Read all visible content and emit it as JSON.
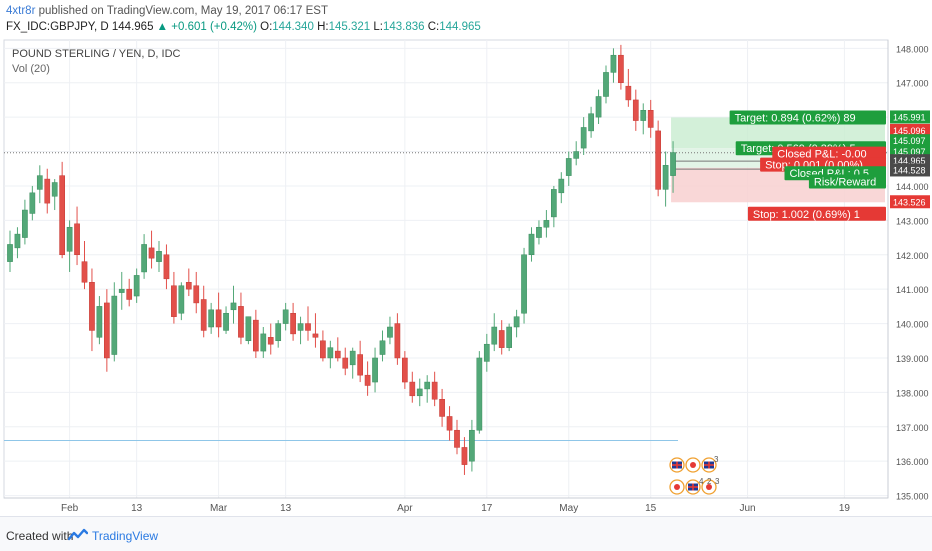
{
  "header": {
    "author": "4xtr8r",
    "published": "published on TradingView.com, May 19, 2017 06:17 EST",
    "symbol": "FX_IDC:GBPJPY, D",
    "price": "144.965",
    "change": "+0.601 (+0.42%)",
    "o_label": "O:",
    "o": "144.340",
    "h_label": "H:",
    "h": "145.321",
    "l_label": "L:",
    "l": "143.836",
    "c_label": "C:",
    "c": "144.965"
  },
  "legend": {
    "title": "POUND STERLING / YEN, D, IDC",
    "vol": "Vol (20)"
  },
  "footer": {
    "created": "Created with",
    "brand": "TradingView"
  },
  "colors": {
    "up": "#53a878",
    "down": "#e2504a",
    "bg": "#ffffff",
    "grid": "#eef0f4"
  },
  "chart_data": {
    "type": "candlestick",
    "y_ticks": [
      "148.000",
      "147.000",
      "146.000",
      "145.000",
      "144.000",
      "143.000",
      "142.000",
      "141.000",
      "140.000",
      "139.000",
      "138.000",
      "137.000",
      "136.000",
      "135.000"
    ],
    "ylim": [
      134.93,
      148.3
    ],
    "x_ticks": [
      {
        "label": "Feb",
        "i": 8
      },
      {
        "label": "13",
        "i": 17
      },
      {
        "label": "Mar",
        "i": 28
      },
      {
        "label": "13",
        "i": 37
      },
      {
        "label": "Apr",
        "i": 53
      },
      {
        "label": "17",
        "i": 64
      },
      {
        "label": "May",
        "i": 75
      },
      {
        "label": "15",
        "i": 86
      },
      {
        "label": "Jun",
        "i": 99
      },
      {
        "label": "19",
        "i": 112
      }
    ],
    "last_price": 144.965,
    "candles": [
      [
        141.8,
        142.7,
        141.5,
        142.3
      ],
      [
        142.2,
        142.8,
        141.9,
        142.6
      ],
      [
        142.5,
        143.6,
        142.3,
        143.3
      ],
      [
        143.2,
        144.0,
        143.0,
        143.8
      ],
      [
        143.9,
        144.6,
        143.5,
        144.3
      ],
      [
        144.2,
        144.5,
        143.2,
        143.5
      ],
      [
        143.7,
        144.2,
        143.3,
        144.1
      ],
      [
        144.3,
        144.7,
        141.9,
        142.0
      ],
      [
        142.1,
        143.0,
        141.5,
        142.8
      ],
      [
        142.9,
        143.4,
        141.7,
        142.0
      ],
      [
        141.8,
        142.4,
        141.0,
        141.2
      ],
      [
        141.2,
        141.6,
        139.2,
        139.8
      ],
      [
        139.6,
        140.8,
        139.4,
        140.5
      ],
      [
        140.6,
        141.0,
        138.6,
        139.0
      ],
      [
        139.1,
        141.2,
        138.9,
        140.8
      ],
      [
        140.9,
        141.5,
        140.4,
        141.0
      ],
      [
        141.0,
        141.3,
        140.5,
        140.7
      ],
      [
        140.8,
        141.6,
        140.6,
        141.4
      ],
      [
        141.5,
        142.6,
        141.3,
        142.3
      ],
      [
        142.2,
        142.7,
        141.6,
        141.9
      ],
      [
        141.8,
        142.4,
        141.5,
        142.1
      ],
      [
        142.0,
        142.3,
        141.0,
        141.3
      ],
      [
        141.1,
        141.5,
        140.0,
        140.2
      ],
      [
        140.3,
        141.2,
        140.1,
        141.1
      ],
      [
        141.2,
        141.6,
        140.8,
        141.0
      ],
      [
        141.1,
        141.5,
        140.3,
        140.6
      ],
      [
        140.7,
        141.1,
        139.6,
        139.8
      ],
      [
        139.9,
        140.6,
        139.7,
        140.4
      ],
      [
        140.4,
        140.9,
        139.6,
        139.9
      ],
      [
        139.8,
        140.5,
        139.7,
        140.3
      ],
      [
        140.4,
        141.1,
        140.0,
        140.6
      ],
      [
        140.5,
        140.9,
        139.4,
        139.6
      ],
      [
        139.5,
        140.2,
        139.4,
        140.2
      ],
      [
        140.1,
        140.4,
        139.0,
        139.2
      ],
      [
        139.2,
        139.9,
        139.0,
        139.7
      ],
      [
        139.6,
        140.0,
        139.1,
        139.4
      ],
      [
        139.5,
        140.1,
        139.3,
        140.0
      ],
      [
        140.0,
        140.6,
        139.8,
        140.4
      ],
      [
        140.3,
        140.6,
        139.5,
        139.7
      ],
      [
        139.8,
        140.2,
        139.4,
        140.0
      ],
      [
        140.0,
        140.5,
        139.5,
        139.8
      ],
      [
        139.7,
        140.3,
        139.3,
        139.6
      ],
      [
        139.5,
        139.8,
        138.9,
        139.0
      ],
      [
        139.0,
        139.5,
        138.7,
        139.3
      ],
      [
        139.2,
        139.6,
        138.9,
        139.0
      ],
      [
        139.0,
        139.3,
        138.5,
        138.7
      ],
      [
        138.8,
        139.3,
        138.4,
        139.2
      ],
      [
        139.1,
        139.5,
        138.3,
        138.5
      ],
      [
        138.5,
        138.9,
        137.9,
        138.2
      ],
      [
        138.3,
        139.3,
        138.0,
        139.0
      ],
      [
        139.1,
        139.8,
        138.9,
        139.5
      ],
      [
        139.6,
        140.2,
        139.4,
        139.9
      ],
      [
        140.0,
        140.3,
        138.8,
        139.0
      ],
      [
        139.0,
        139.2,
        138.1,
        138.3
      ],
      [
        138.3,
        138.6,
        137.7,
        137.9
      ],
      [
        137.9,
        138.4,
        137.6,
        138.1
      ],
      [
        138.1,
        138.5,
        137.7,
        138.3
      ],
      [
        138.3,
        138.6,
        137.6,
        137.8
      ],
      [
        137.8,
        138.1,
        137.0,
        137.3
      ],
      [
        137.3,
        137.6,
        136.6,
        136.9
      ],
      [
        136.9,
        137.2,
        136.2,
        136.4
      ],
      [
        136.4,
        136.7,
        135.6,
        135.9
      ],
      [
        136.0,
        137.2,
        135.7,
        136.9
      ],
      [
        136.9,
        139.2,
        136.8,
        139.0
      ],
      [
        138.9,
        139.7,
        138.6,
        139.4
      ],
      [
        139.4,
        140.3,
        139.2,
        139.9
      ],
      [
        139.8,
        140.1,
        139.1,
        139.3
      ],
      [
        139.3,
        140.0,
        139.2,
        139.9
      ],
      [
        139.9,
        140.4,
        139.6,
        140.2
      ],
      [
        140.3,
        142.2,
        140.0,
        142.0
      ],
      [
        142.0,
        142.8,
        141.8,
        142.6
      ],
      [
        142.5,
        143.0,
        142.3,
        142.8
      ],
      [
        142.8,
        143.3,
        142.5,
        143.0
      ],
      [
        143.1,
        144.0,
        142.8,
        143.9
      ],
      [
        143.8,
        144.4,
        143.5,
        144.2
      ],
      [
        144.3,
        145.0,
        144.0,
        144.8
      ],
      [
        144.8,
        145.3,
        144.6,
        145.0
      ],
      [
        145.1,
        146.0,
        144.9,
        145.7
      ],
      [
        145.6,
        146.3,
        145.4,
        146.1
      ],
      [
        146.0,
        146.8,
        145.8,
        146.6
      ],
      [
        146.6,
        147.5,
        146.4,
        147.3
      ],
      [
        147.3,
        148.0,
        147.0,
        147.8
      ],
      [
        147.8,
        148.1,
        146.8,
        147.0
      ],
      [
        146.9,
        147.4,
        146.3,
        146.5
      ],
      [
        146.5,
        146.8,
        145.6,
        145.9
      ],
      [
        145.9,
        146.4,
        145.5,
        146.2
      ],
      [
        146.2,
        146.5,
        145.4,
        145.7
      ],
      [
        145.6,
        145.9,
        143.7,
        143.9
      ],
      [
        143.9,
        145.0,
        143.4,
        144.6
      ],
      [
        144.3,
        145.3,
        143.8,
        144.97
      ]
    ],
    "positions": [
      {
        "entry": 145.097,
        "target": 145.991,
        "stop": 143.526
      },
      {
        "entry": 144.528,
        "target": 145.097,
        "stop": 144.527
      }
    ],
    "price_labels": [
      {
        "text": "145.991",
        "v": 145.991,
        "color": "#1e9e3d"
      },
      {
        "text": "145.096",
        "v": 145.6,
        "color": "#e53935"
      },
      {
        "text": "145.097",
        "v": 145.3,
        "color": "#1e9e3d"
      },
      {
        "text": "145.097",
        "v": 144.99,
        "color": "#1e9e3d"
      },
      {
        "text": "144.965",
        "v": 144.72,
        "color": "#4a4a4a"
      },
      {
        "text": "144.528",
        "v": 144.45,
        "color": "#4a4a4a"
      },
      {
        "text": "143.526",
        "v": 143.526,
        "color": "#e53935"
      }
    ],
    "annotations": [
      {
        "text": "Target: 0.894 (0.62%) 89",
        "v": 145.991,
        "color": "#1e9e3d"
      },
      {
        "text": "Target: 0.569 (0.39%) 5",
        "v": 145.097,
        "color": "#1e9e3d"
      },
      {
        "text": "Closed P&L: -0.00",
        "v": 144.94,
        "color": "#e53935"
      },
      {
        "text": "Stop: 0.001 (0.00%)",
        "v": 144.62,
        "color": "#e53935"
      },
      {
        "text": "Closed P&L: 0.5",
        "v": 144.37,
        "color": "#1e9e3d"
      },
      {
        "text": "Risk/Reward",
        "v": 144.13,
        "color": "#1e9e3d"
      },
      {
        "text": "Stop: 1.002 (0.69%) 1",
        "v": 143.19,
        "color": "#e53935"
      }
    ],
    "events_row1": [
      "3"
    ],
    "events_row2": [
      "4",
      "2",
      "3"
    ]
  }
}
